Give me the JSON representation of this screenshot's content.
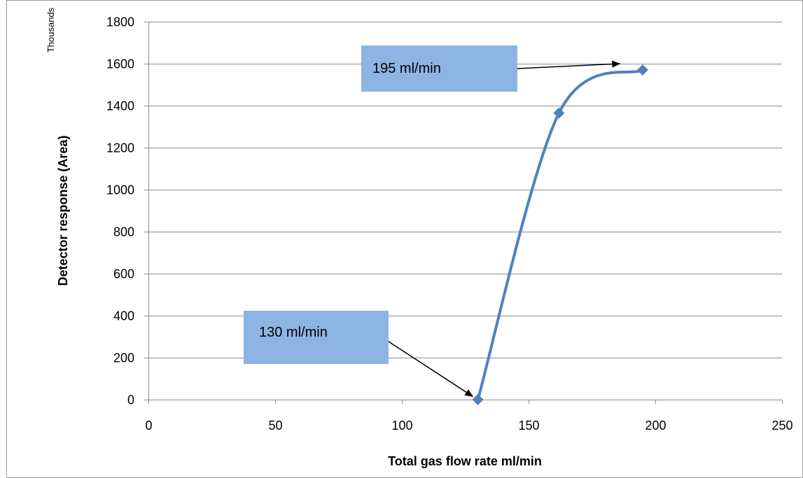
{
  "chart_data": {
    "type": "line",
    "smooth": true,
    "x": [
      130,
      162,
      195
    ],
    "series": [
      {
        "values": [
          0,
          1365,
          1570
        ],
        "color": "#4F81BD",
        "marker": "diamond"
      }
    ],
    "xlabel": "Total gas flow rate ml/min",
    "ylabel": "Detector response (Area)",
    "y_unit_label": "Thousands",
    "xlim": [
      0,
      250
    ],
    "ylim": [
      0,
      1800
    ],
    "x_ticks": [
      0,
      50,
      100,
      150,
      200,
      250
    ],
    "y_ticks": [
      0,
      200,
      400,
      600,
      800,
      1000,
      1200,
      1400,
      1600,
      1800
    ],
    "grid": {
      "horizontal": true,
      "vertical": false
    },
    "legend": "none",
    "annotations": [
      {
        "text": "195 ml/min",
        "points_to": {
          "x": 186,
          "y": 1600
        },
        "box_color": "#8DB4E2"
      },
      {
        "text": "130 ml/min",
        "points_to": {
          "x": 128,
          "y": 15
        },
        "box_color": "#8DB4E2"
      }
    ]
  }
}
